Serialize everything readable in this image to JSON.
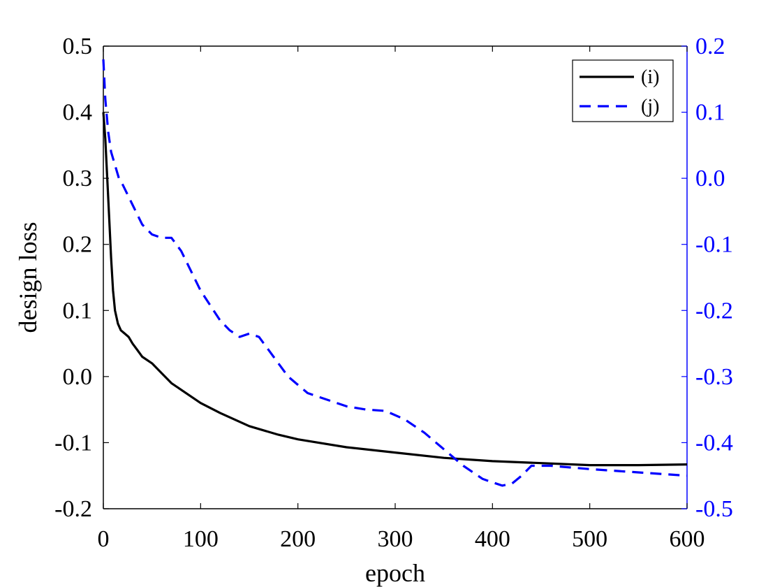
{
  "chart_data": {
    "type": "line",
    "title": "",
    "xlabel": "epoch",
    "ylabel": "design loss",
    "y2label": "",
    "xlim": [
      0,
      600
    ],
    "ylim": [
      -0.2,
      0.5
    ],
    "y2lim": [
      -0.5,
      0.2
    ],
    "xticks": [
      "0",
      "100",
      "200",
      "300",
      "400",
      "500",
      "600"
    ],
    "yticks": [
      "-0.2",
      "-0.1",
      "0.0",
      "0.1",
      "0.2",
      "0.3",
      "0.4",
      "0.5"
    ],
    "y2ticks": [
      "-0.5",
      "-0.4",
      "-0.3",
      "-0.2",
      "-0.1",
      "0.0",
      "0.1",
      "0.2"
    ],
    "grid": false,
    "legend_position": "top-right",
    "colors": {
      "axis": "#000000",
      "right_axis": "#0000ff"
    },
    "series": [
      {
        "name": "(i)",
        "axis": "left",
        "color": "#000000",
        "style": "solid",
        "x": [
          0,
          2,
          4,
          6,
          8,
          10,
          12,
          15,
          18,
          22,
          26,
          30,
          35,
          40,
          50,
          60,
          70,
          80,
          100,
          120,
          150,
          180,
          200,
          250,
          300,
          350,
          400,
          450,
          500,
          550,
          600
        ],
        "y": [
          0.4,
          0.36,
          0.3,
          0.24,
          0.18,
          0.13,
          0.1,
          0.08,
          0.07,
          0.065,
          0.06,
          0.05,
          0.04,
          0.03,
          0.02,
          0.005,
          -0.01,
          -0.02,
          -0.04,
          -0.055,
          -0.075,
          -0.088,
          -0.095,
          -0.107,
          -0.115,
          -0.123,
          -0.128,
          -0.131,
          -0.134,
          -0.134,
          -0.133
        ]
      },
      {
        "name": "(j)",
        "axis": "right",
        "color": "#0000ff",
        "style": "dashed",
        "x": [
          0,
          2,
          5,
          8,
          12,
          16,
          20,
          30,
          40,
          50,
          60,
          70,
          80,
          100,
          120,
          130,
          140,
          150,
          160,
          175,
          190,
          210,
          230,
          250,
          270,
          290,
          310,
          330,
          350,
          370,
          390,
          400,
          410,
          420,
          430,
          440,
          460,
          500,
          550,
          600
        ],
        "y": [
          0.18,
          0.12,
          0.07,
          0.04,
          0.02,
          0.0,
          -0.01,
          -0.04,
          -0.07,
          -0.085,
          -0.09,
          -0.09,
          -0.11,
          -0.17,
          -0.215,
          -0.23,
          -0.24,
          -0.235,
          -0.24,
          -0.27,
          -0.3,
          -0.325,
          -0.335,
          -0.345,
          -0.35,
          -0.352,
          -0.365,
          -0.385,
          -0.41,
          -0.435,
          -0.455,
          -0.46,
          -0.465,
          -0.462,
          -0.45,
          -0.435,
          -0.435,
          -0.44,
          -0.445,
          -0.45
        ]
      }
    ]
  }
}
